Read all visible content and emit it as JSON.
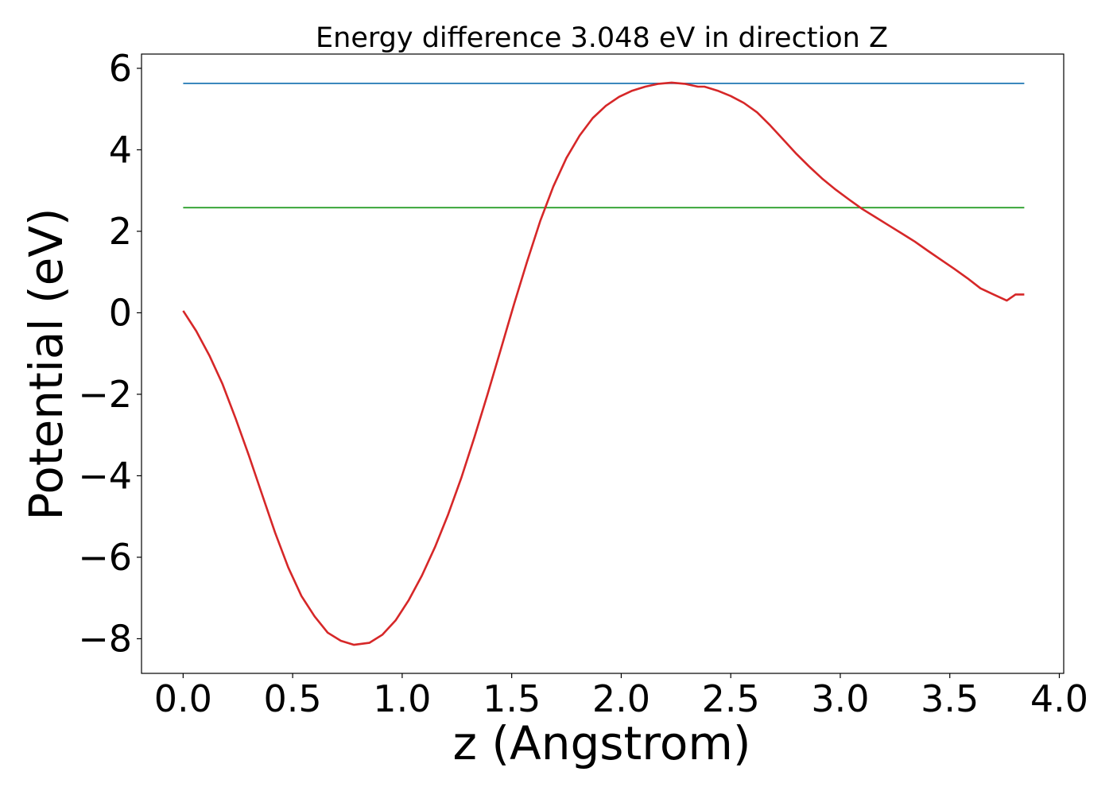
{
  "chart_data": {
    "type": "line",
    "title": "Energy difference 3.048 eV in direction Z",
    "xlabel": "z (Angstrom)",
    "ylabel": "Potential (eV)",
    "xlim": [
      -0.19,
      4.02
    ],
    "ylim": [
      -8.85,
      6.35
    ],
    "xticks": [
      0.0,
      0.5,
      1.0,
      1.5,
      2.0,
      2.5,
      3.0,
      3.5,
      4.0
    ],
    "xtick_labels": [
      "0.0",
      "0.5",
      "1.0",
      "1.5",
      "2.0",
      "2.5",
      "3.0",
      "3.5",
      "4.0"
    ],
    "yticks": [
      -8,
      -6,
      -4,
      -2,
      0,
      2,
      4,
      6
    ],
    "ytick_labels": [
      "−8",
      "−6",
      "−4",
      "−2",
      "0",
      "2",
      "4",
      "6"
    ],
    "grid": false,
    "series": [
      {
        "color": "#d62728",
        "x": [
          0.0,
          0.06,
          0.12,
          0.18,
          0.24,
          0.3,
          0.36,
          0.42,
          0.48,
          0.54,
          0.6,
          0.66,
          0.72,
          0.78,
          0.85,
          0.91,
          0.97,
          1.03,
          1.09,
          1.15,
          1.21,
          1.27,
          1.33,
          1.39,
          1.45,
          1.51,
          1.57,
          1.63,
          1.69,
          1.75,
          1.81,
          1.87,
          1.93,
          1.99,
          2.05,
          2.11,
          2.17,
          2.23,
          2.29,
          2.35,
          2.38,
          2.44,
          2.5,
          2.56,
          2.62,
          2.68,
          2.74,
          2.8,
          2.86,
          2.92,
          2.98,
          3.04,
          3.1,
          3.16,
          3.22,
          3.28,
          3.34,
          3.4,
          3.46,
          3.52,
          3.58,
          3.64,
          3.7,
          3.76,
          3.8,
          3.84
        ],
        "y": [
          0.05,
          -0.45,
          -1.05,
          -1.75,
          -2.6,
          -3.5,
          -4.45,
          -5.4,
          -6.25,
          -6.95,
          -7.45,
          -7.85,
          -8.05,
          -8.15,
          -8.1,
          -7.9,
          -7.55,
          -7.05,
          -6.45,
          -5.75,
          -4.95,
          -4.05,
          -3.05,
          -2.0,
          -0.9,
          0.2,
          1.25,
          2.25,
          3.1,
          3.8,
          4.35,
          4.78,
          5.08,
          5.3,
          5.45,
          5.55,
          5.62,
          5.65,
          5.62,
          5.55,
          5.55,
          5.45,
          5.32,
          5.15,
          4.92,
          4.6,
          4.25,
          3.9,
          3.58,
          3.28,
          3.02,
          2.78,
          2.55,
          2.35,
          2.15,
          1.95,
          1.75,
          1.52,
          1.3,
          1.08,
          0.85,
          0.6,
          0.45,
          0.3,
          0.45,
          0.45
        ]
      },
      {
        "color": "#1f77b4",
        "x": [
          0.0,
          3.84
        ],
        "y": [
          5.63,
          5.63
        ]
      },
      {
        "color": "#2ca02c",
        "x": [
          0.0,
          3.84
        ],
        "y": [
          2.58,
          2.58
        ]
      }
    ]
  }
}
